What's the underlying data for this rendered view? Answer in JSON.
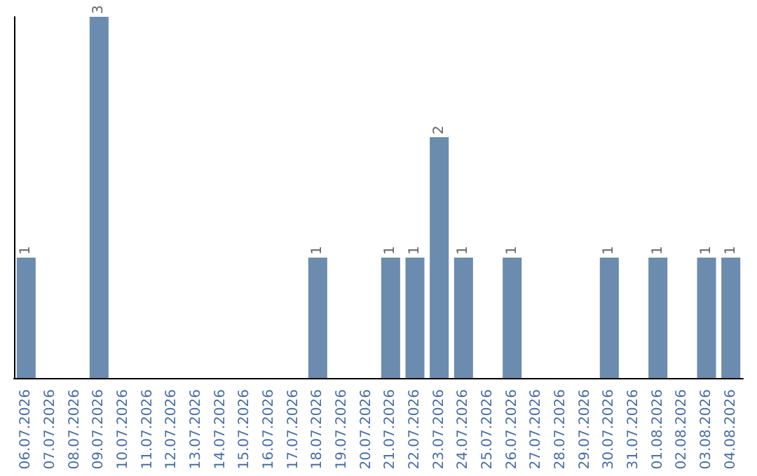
{
  "chart_data": {
    "type": "bar",
    "categories": [
      "06.07.2026",
      "07.07.2026",
      "08.07.2026",
      "09.07.2026",
      "10.07.2026",
      "11.07.2026",
      "12.07.2026",
      "13.07.2026",
      "14.07.2026",
      "15.07.2026",
      "16.07.2026",
      "17.07.2026",
      "18.07.2026",
      "19.07.2026",
      "20.07.2026",
      "21.07.2026",
      "22.07.2026",
      "23.07.2026",
      "24.07.2026",
      "25.07.2026",
      "26.07.2026",
      "27.07.2026",
      "28.07.2026",
      "29.07.2026",
      "30.07.2026",
      "31.07.2026",
      "01.08.2026",
      "02.08.2026",
      "03.08.2026",
      "04.08.2026"
    ],
    "values": [
      1,
      0,
      0,
      3,
      0,
      0,
      0,
      0,
      0,
      0,
      0,
      0,
      1,
      0,
      0,
      1,
      1,
      2,
      1,
      0,
      1,
      0,
      0,
      0,
      1,
      0,
      1,
      0,
      1,
      1
    ],
    "value_labels": [
      "1",
      null,
      null,
      "3",
      null,
      null,
      null,
      null,
      null,
      null,
      null,
      null,
      "1",
      null,
      null,
      "1",
      "1",
      "2",
      "1",
      null,
      "1",
      null,
      null,
      null,
      "1",
      null,
      "1",
      null,
      "1",
      "1"
    ],
    "color": "#6b8cae",
    "grid": false,
    "tick_labels": "x"
  }
}
